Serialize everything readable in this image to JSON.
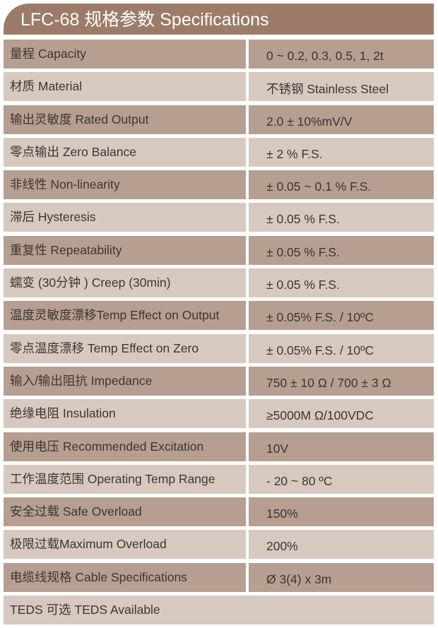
{
  "title": "LFC-68 规格参数 Specifications",
  "colors": {
    "header": "#9c7b69",
    "row_dark": "#b69f91",
    "row_light": "#d8c9c0"
  },
  "rows": [
    {
      "label": "量程 Capacity",
      "value": "0 ~ 0.2, 0.3, 0.5, 1, 2t"
    },
    {
      "label": "材质 Material",
      "value": "不锈钢 Stainless Steel"
    },
    {
      "label": "输出灵敏度 Rated Output",
      "value": "2.0 ± 10%mV/V"
    },
    {
      "label": "零点输出  Zero Balance",
      "value": "± 2 % F.S."
    },
    {
      "label": "非线性 Non-linearity",
      "value": "± 0.05 ~ 0.1 % F.S."
    },
    {
      "label": "滞后 Hysteresis",
      "value": "± 0.05 % F.S."
    },
    {
      "label": "重复性 Repeatability",
      "value": "± 0.05 % F.S."
    },
    {
      "label": "蠕变 (30分钟 ) Creep (30min)",
      "value": "± 0.05 % F.S."
    },
    {
      "label": "温度灵敏度漂移Temp Effect on Output",
      "value": "± 0.05% F.S. / 10ºC"
    },
    {
      "label": "零点温度漂移 Temp Effect on Zero",
      "value": "± 0.05% F.S. / 10ºC"
    },
    {
      "label": "输入/输出阻抗 Impedance",
      "value": "750 ± 10 Ω / 700 ± 3 Ω"
    },
    {
      "label": "绝缘电阻  Insulation",
      "value": "≥5000M Ω/100VDC"
    },
    {
      "label": "使用电压 Recommended Excitation",
      "value": "10V"
    },
    {
      "label": "工作温度范围 Operating Temp  Range",
      "value": "- 20 ~ 80 ºC"
    },
    {
      "label": "安全过载 Safe Overload",
      "value": "150%"
    },
    {
      "label": "极限过载Maximum Overload",
      "value": "200%"
    },
    {
      "label": "电缆线规格 Cable Specifications",
      "value": "Ø 3(4)  x 3m"
    },
    {
      "label": "TEDS 可选 TEDS Available"
    }
  ]
}
